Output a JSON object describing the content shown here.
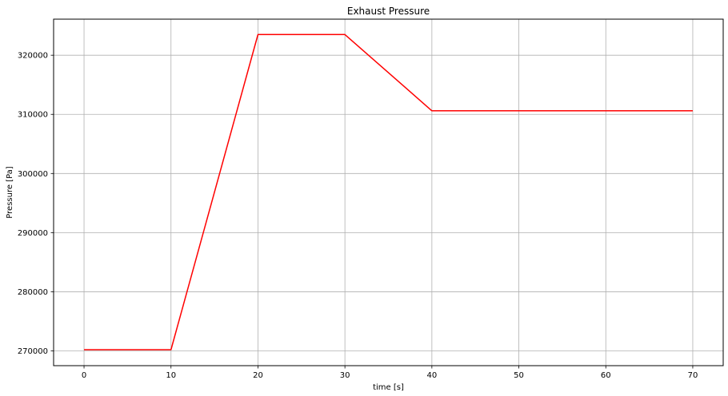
{
  "chart_data": {
    "type": "line",
    "title": "Exhaust Pressure",
    "xlabel": "time [s]",
    "ylabel": "Pressure [Pa]",
    "xlim": [
      -3.5,
      73.5
    ],
    "ylim": [
      267500,
      326100
    ],
    "xticks": [
      0,
      10,
      20,
      30,
      40,
      50,
      60,
      70
    ],
    "yticks": [
      270000,
      280000,
      290000,
      300000,
      310000,
      320000
    ],
    "grid": true,
    "series": [
      {
        "color": "#ff0000",
        "x": [
          0,
          10,
          20,
          30,
          40,
          70
        ],
        "y": [
          270200,
          270200,
          323500,
          323500,
          310600,
          310600
        ]
      }
    ]
  }
}
